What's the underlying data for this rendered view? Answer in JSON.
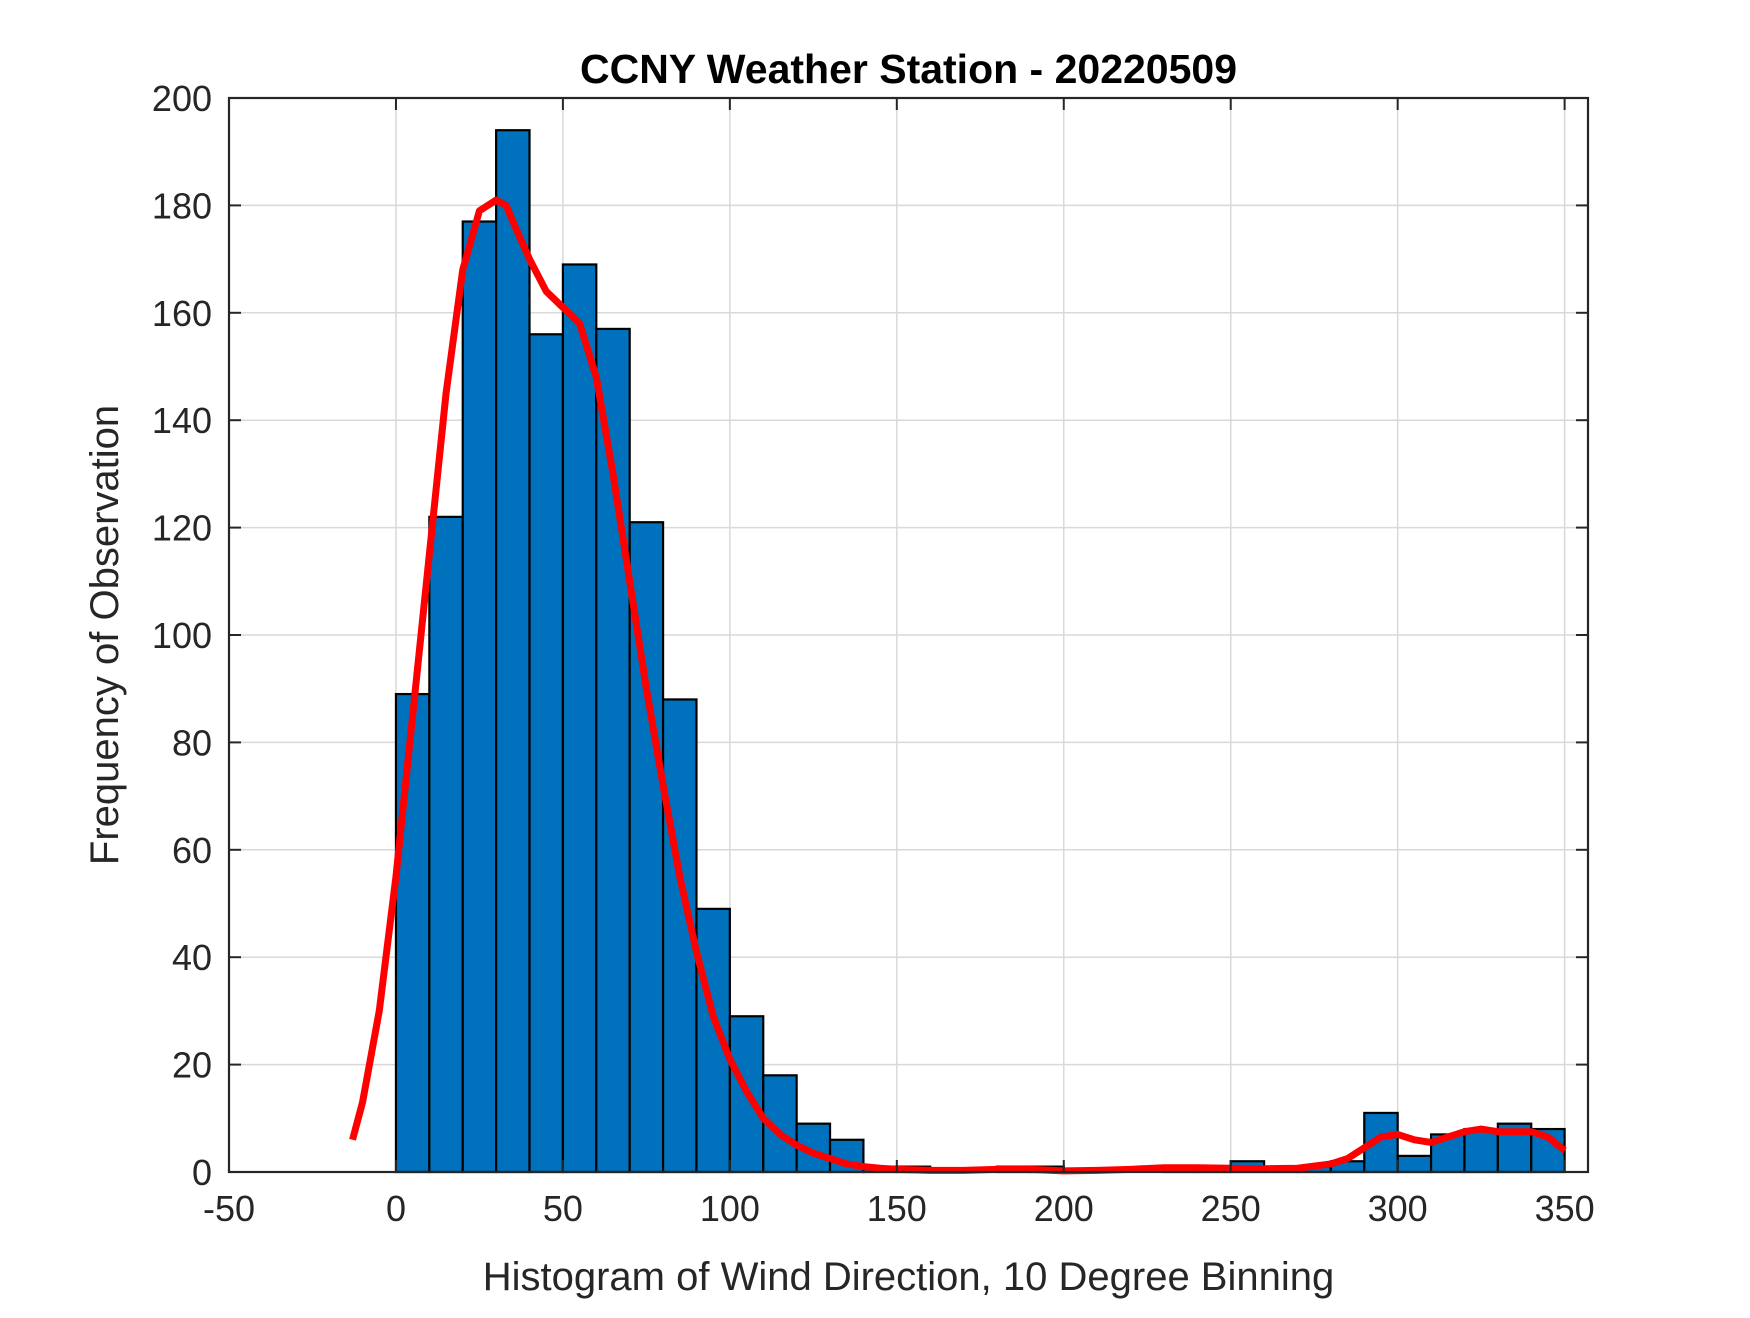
{
  "chart_data": {
    "type": "bar",
    "title": "CCNY Weather Station - 20220509",
    "xlabel": "Histogram of Wind Direction, 10 Degree Binning",
    "ylabel": "Frequency of Observation",
    "xlim": [
      -50,
      357
    ],
    "ylim": [
      0,
      200
    ],
    "xticks": [
      -50,
      0,
      50,
      100,
      150,
      200,
      250,
      300,
      350
    ],
    "yticks": [
      0,
      20,
      40,
      60,
      80,
      100,
      120,
      140,
      160,
      180,
      200
    ],
    "grid": true,
    "bin_width": 10,
    "bins": [
      {
        "start": 0,
        "value": 89
      },
      {
        "start": 10,
        "value": 122
      },
      {
        "start": 20,
        "value": 177
      },
      {
        "start": 30,
        "value": 194
      },
      {
        "start": 40,
        "value": 156
      },
      {
        "start": 50,
        "value": 169
      },
      {
        "start": 60,
        "value": 157
      },
      {
        "start": 70,
        "value": 121
      },
      {
        "start": 80,
        "value": 88
      },
      {
        "start": 90,
        "value": 49
      },
      {
        "start": 100,
        "value": 29
      },
      {
        "start": 110,
        "value": 18
      },
      {
        "start": 120,
        "value": 9
      },
      {
        "start": 130,
        "value": 6
      },
      {
        "start": 140,
        "value": 1
      },
      {
        "start": 150,
        "value": 1
      },
      {
        "start": 160,
        "value": 0
      },
      {
        "start": 170,
        "value": 0
      },
      {
        "start": 180,
        "value": 1
      },
      {
        "start": 190,
        "value": 1
      },
      {
        "start": 200,
        "value": 0
      },
      {
        "start": 210,
        "value": 0
      },
      {
        "start": 220,
        "value": 0
      },
      {
        "start": 230,
        "value": 1
      },
      {
        "start": 240,
        "value": 1
      },
      {
        "start": 250,
        "value": 2
      },
      {
        "start": 260,
        "value": 1
      },
      {
        "start": 270,
        "value": 1
      },
      {
        "start": 280,
        "value": 2
      },
      {
        "start": 290,
        "value": 11
      },
      {
        "start": 300,
        "value": 3
      },
      {
        "start": 310,
        "value": 7
      },
      {
        "start": 320,
        "value": 8
      },
      {
        "start": 330,
        "value": 9
      },
      {
        "start": 340,
        "value": 8
      }
    ],
    "fit_curve": {
      "name": "density fit",
      "x": [
        -13,
        -10,
        -5,
        0,
        5,
        10,
        15,
        20,
        25,
        30,
        33,
        35,
        40,
        45,
        50,
        55,
        60,
        65,
        70,
        75,
        80,
        85,
        90,
        95,
        100,
        105,
        110,
        115,
        120,
        125,
        130,
        135,
        140,
        145,
        150,
        160,
        170,
        180,
        190,
        200,
        210,
        220,
        230,
        240,
        250,
        260,
        270,
        280,
        285,
        290,
        295,
        300,
        305,
        310,
        315,
        320,
        325,
        330,
        335,
        340,
        345,
        350
      ],
      "y": [
        6,
        13,
        30,
        55,
        85,
        115,
        145,
        168,
        179,
        181,
        180,
        177,
        170,
        164,
        161,
        158,
        148,
        130,
        110,
        90,
        72,
        55,
        41,
        29,
        21,
        15,
        10,
        7,
        5,
        3.5,
        2.5,
        1.5,
        1,
        0.7,
        0.5,
        0.3,
        0.3,
        0.5,
        0.5,
        0.2,
        0.3,
        0.5,
        0.8,
        0.8,
        0.7,
        0.6,
        0.7,
        1.5,
        2.5,
        4.5,
        6.5,
        7,
        6,
        5.5,
        6.5,
        7.5,
        8,
        7.5,
        7.5,
        7.5,
        6.5,
        4
      ]
    },
    "colors": {
      "bar_fill": "#0072BD",
      "bar_edge": "#000000",
      "fit_line": "#FF0000",
      "grid": "#D9D9D9",
      "axis": "#262626"
    }
  }
}
